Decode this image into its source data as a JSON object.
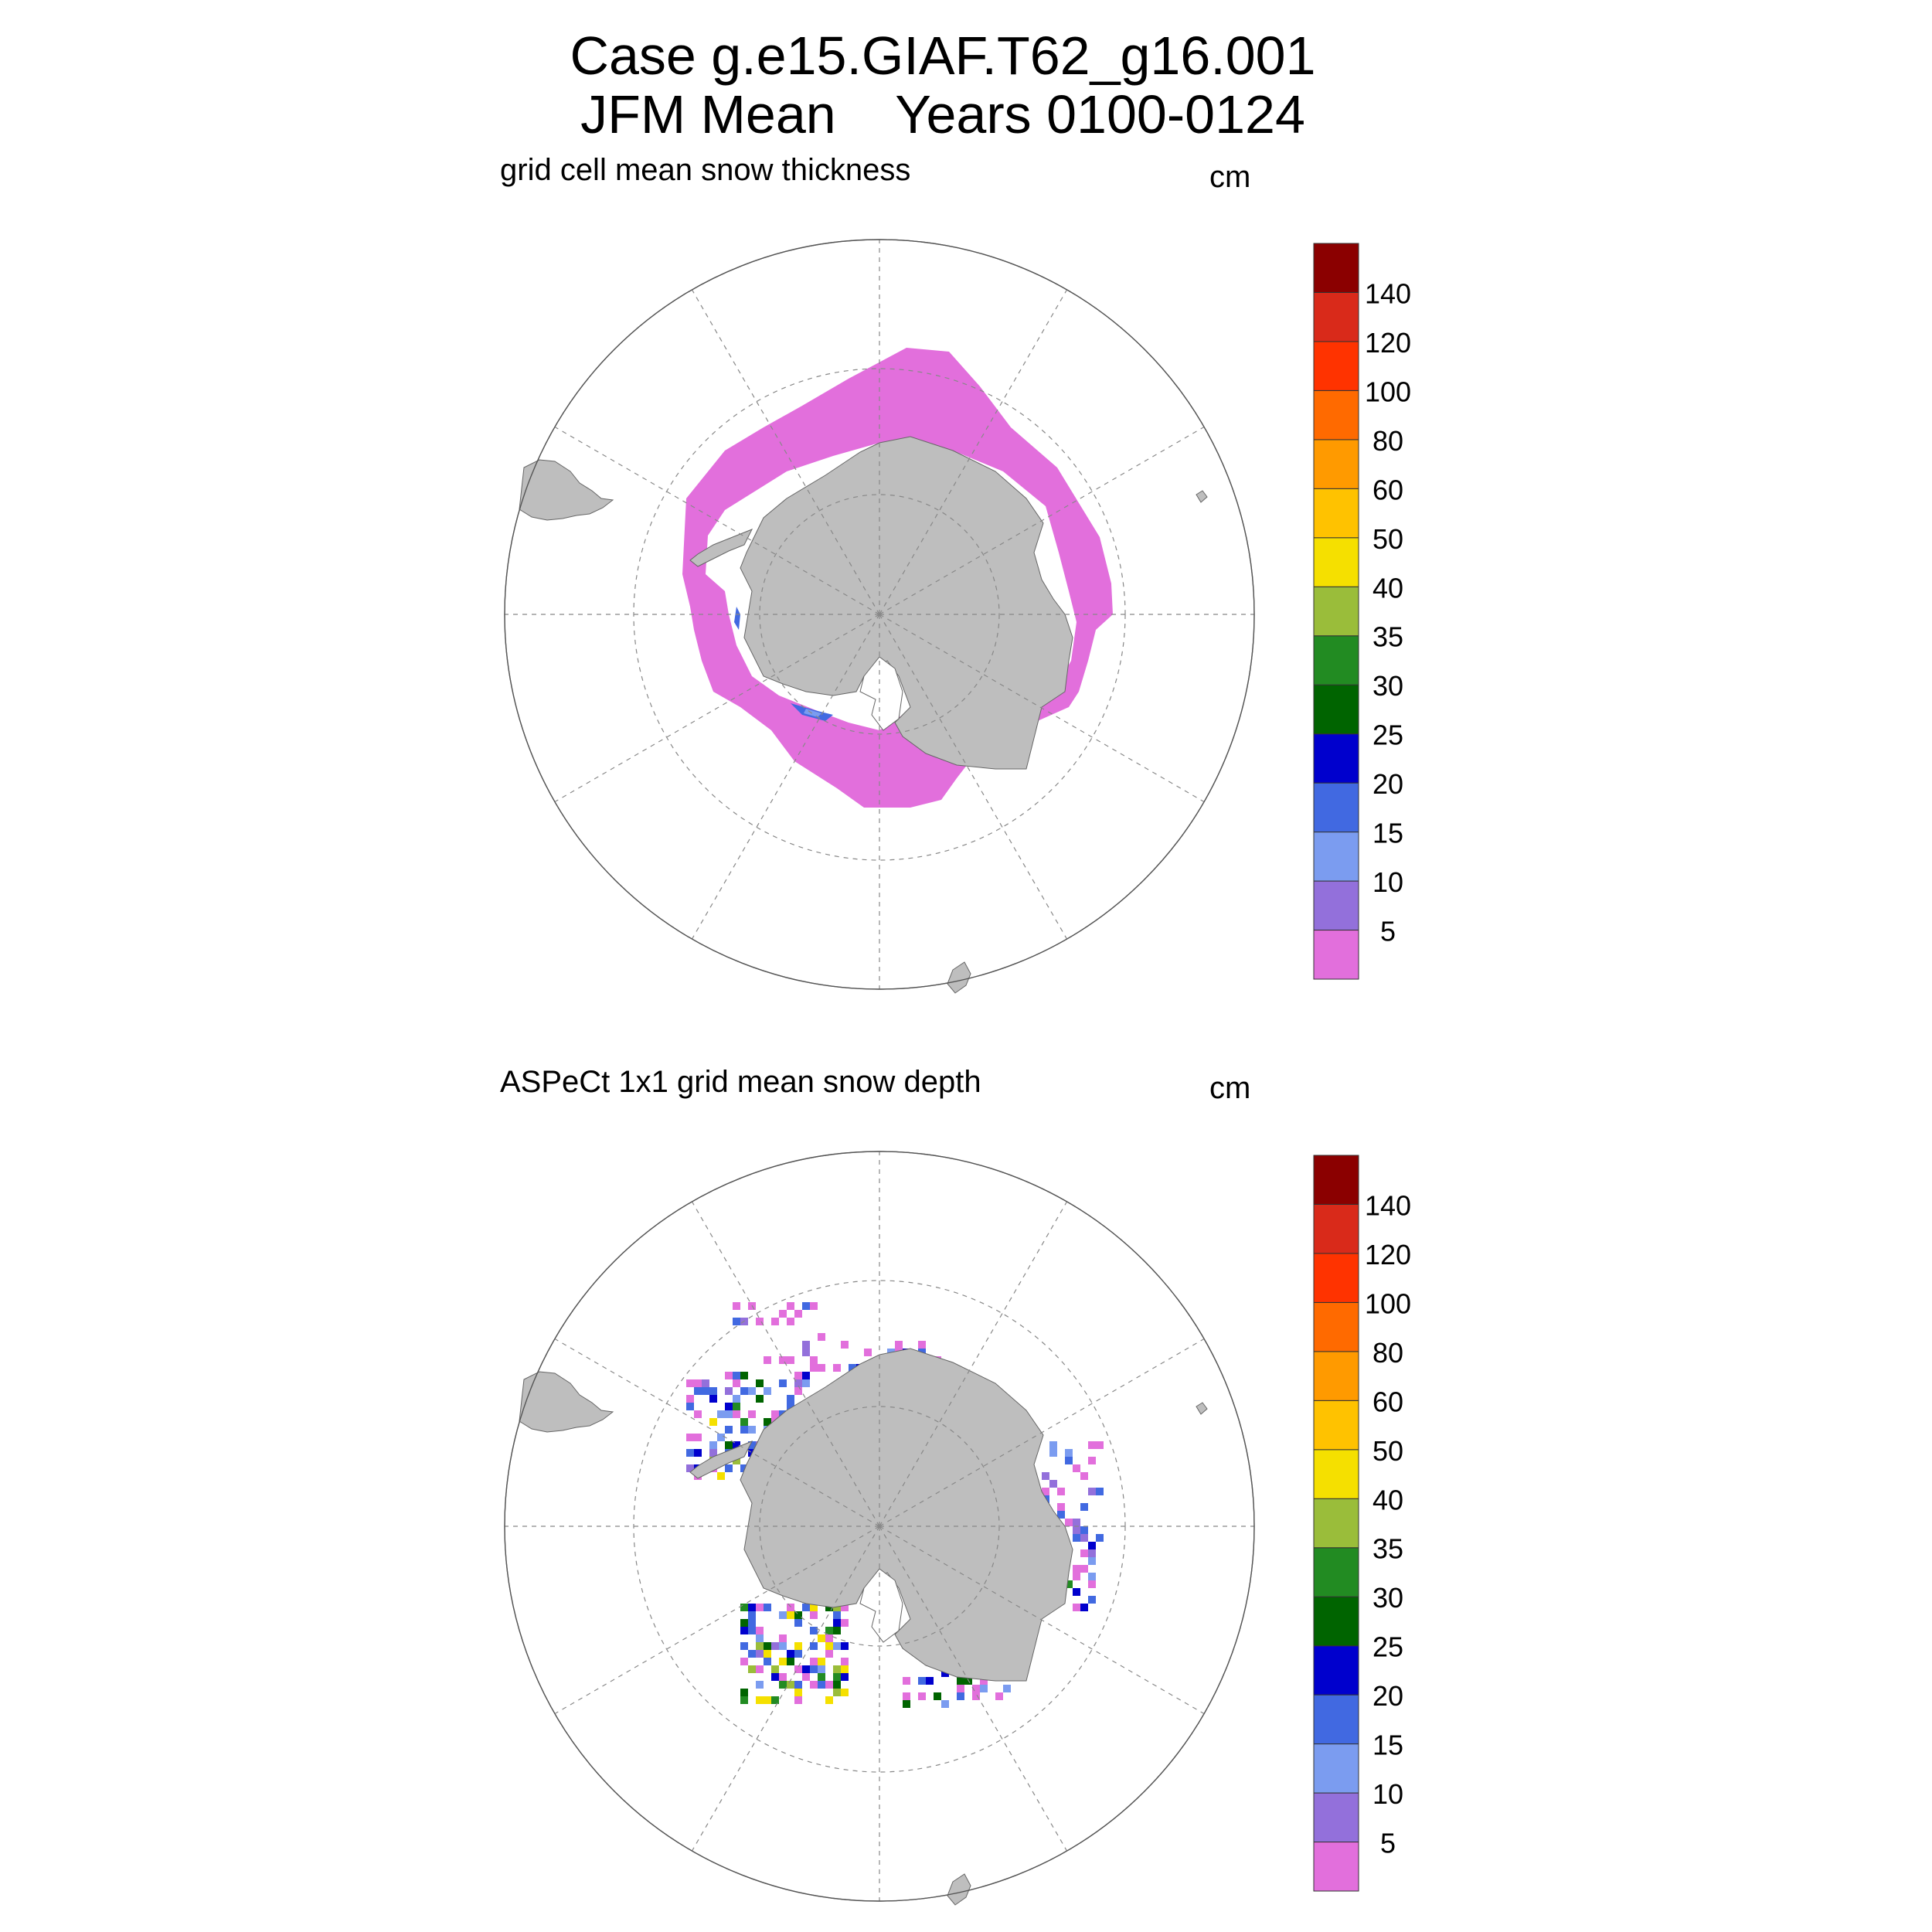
{
  "figure": {
    "title_line1": "Case g.e15.GIAF.T62_g16.001",
    "title_line2": "JFM Mean    Years 0100-0124"
  },
  "panels": [
    {
      "title": "grid cell mean snow thickness",
      "units": "cm"
    },
    {
      "title": "ASPeCt 1x1 grid mean snow depth",
      "units": "cm"
    }
  ],
  "colorbar": {
    "labels": [
      "5",
      "10",
      "15",
      "20",
      "25",
      "30",
      "35",
      "40",
      "50",
      "60",
      "80",
      "100",
      "120",
      "140"
    ],
    "colors": [
      "#e26fdc",
      "#9370db",
      "#7b9cf0",
      "#4169e1",
      "#0000cd",
      "#006400",
      "#228b22",
      "#9abd3a",
      "#f5e000",
      "#ffc200",
      "#ff9a00",
      "#ff6a00",
      "#ff3300",
      "#d92a1a",
      "#8b0000"
    ]
  },
  "map": {
    "land_color": "#bebebe",
    "grid_color": "#888888"
  }
}
